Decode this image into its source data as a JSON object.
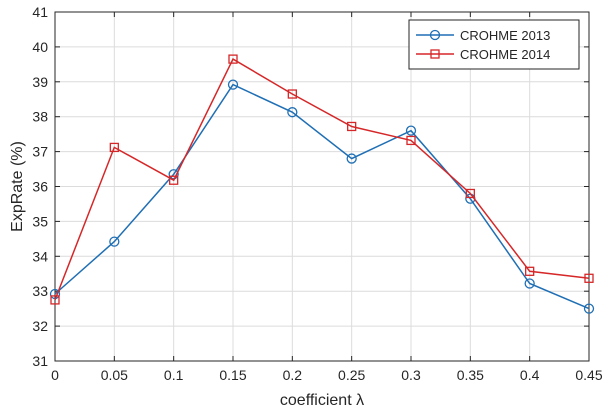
{
  "chart_data": {
    "type": "line",
    "title": "",
    "xlabel": "coefficient λ",
    "ylabel": "ExpRate (%)",
    "x": [
      0,
      0.05,
      0.1,
      0.15,
      0.2,
      0.25,
      0.3,
      0.35,
      0.4,
      0.45
    ],
    "xticks": [
      "0",
      "0.05",
      "0.1",
      "0.15",
      "0.2",
      "0.25",
      "0.3",
      "0.35",
      "0.4",
      "0.45"
    ],
    "yticks": [
      "31",
      "32",
      "33",
      "34",
      "35",
      "36",
      "37",
      "38",
      "39",
      "40",
      "41"
    ],
    "xlim": [
      0,
      0.45
    ],
    "ylim": [
      31,
      41
    ],
    "grid": true,
    "legend_position": "top-right",
    "series": [
      {
        "name": "CROHME 2013",
        "color": "#1f6fb5",
        "marker": "circle",
        "values": [
          32.92,
          34.42,
          36.35,
          38.92,
          38.13,
          36.8,
          37.6,
          35.65,
          33.22,
          32.5
        ]
      },
      {
        "name": "CROHME 2014",
        "color": "#d62728",
        "marker": "square",
        "values": [
          32.75,
          37.12,
          36.18,
          39.65,
          38.65,
          37.72,
          37.32,
          35.8,
          33.57,
          33.37
        ]
      }
    ]
  }
}
